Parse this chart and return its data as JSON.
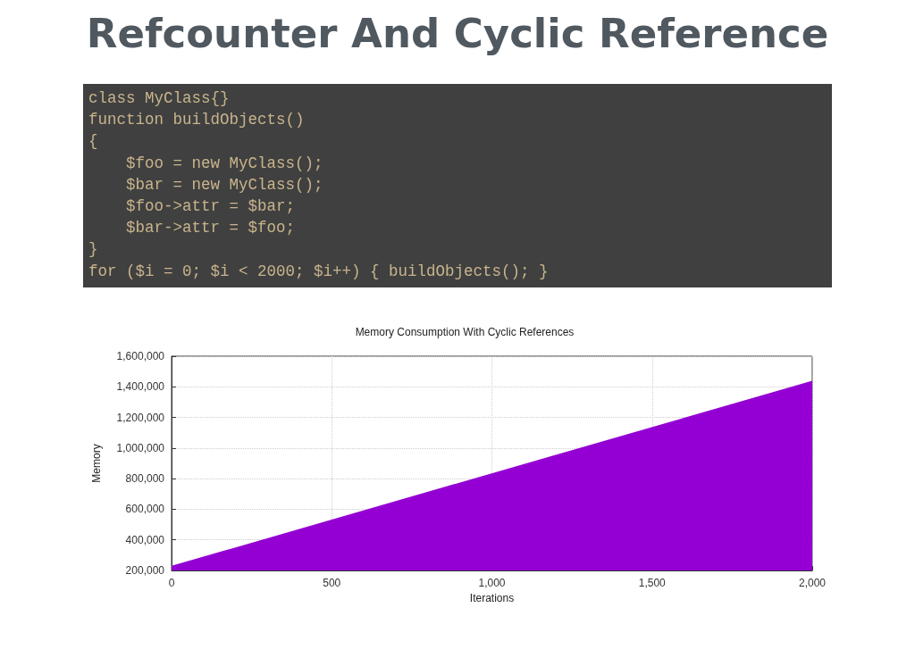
{
  "chart_data": {
    "type": "area",
    "title": "Refcounter And Cyclic Reference",
    "subtitle": "Memory Consumption With Cyclic References",
    "xlabel": "Iterations",
    "ylabel": "Memory",
    "annotations": [
      "class MyClass{}",
      "function buildObjects()",
      "{",
      "    $foo = new MyClass();",
      "    $bar = new MyClass();",
      "    $foo->attr = $bar;",
      "    $bar->attr = $foo;",
      "}",
      "for ($i = 0; $i < 2000; $i++) { buildObjects(); }"
    ],
    "x": [
      0,
      2000
    ],
    "series": [
      {
        "color": "#9400d3",
        "values": [
          230000,
          1440000
        ]
      }
    ],
    "xlim": [
      0,
      2000
    ],
    "xticks": [
      0,
      {
        "value": 500,
        "label": "500"
      },
      {
        "value": 1000,
        "label": "1,000"
      },
      {
        "value": 1500,
        "label": "1,500"
      },
      {
        "value": 2000,
        "label": "2,000"
      }
    ],
    "ylim": [
      200000,
      1600000
    ],
    "yticks": [
      {
        "value": 200000,
        "label": "200,000"
      },
      {
        "value": 400000,
        "label": "400,000"
      },
      {
        "value": 600000,
        "label": "600,000"
      },
      {
        "value": 800000,
        "label": "800,000"
      },
      {
        "value": 1000000,
        "label": "1,000,000"
      },
      {
        "value": 1200000,
        "label": "1,200,000"
      },
      {
        "value": 1400000,
        "label": "1,400,000"
      },
      {
        "value": 1600000,
        "label": "1,600,000"
      }
    ],
    "grid": true,
    "marker": "none"
  }
}
